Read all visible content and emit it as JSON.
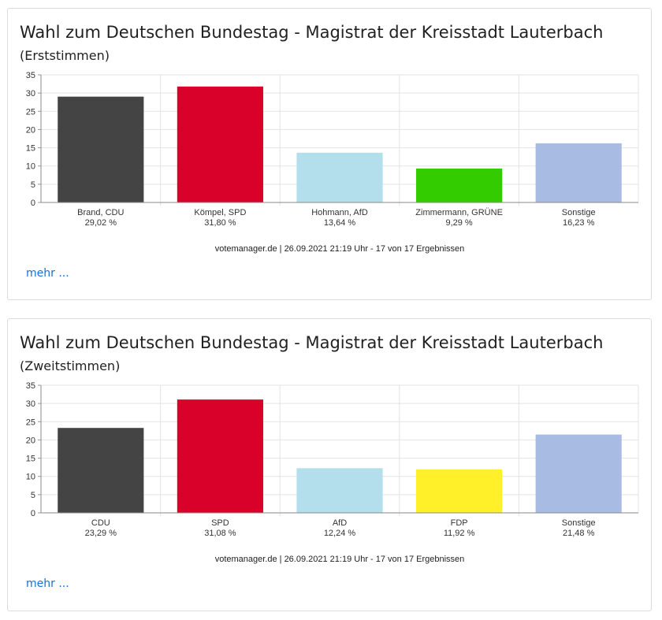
{
  "cards": [
    {
      "title": "Wahl zum Deutschen Bundestag - Magistrat der Kreisstadt Lauterbach",
      "subtitle": "(Erststimmen)",
      "source": "votemanager.de | 26.09.2021 21:19 Uhr - 17 von 17 Ergebnissen",
      "more_label": "mehr ...",
      "chart_data": {
        "type": "bar",
        "categories": [
          "Brand, CDU",
          "Kömpel, SPD",
          "Hohmann, AfD",
          "Zimmermann, GRÜNE",
          "Sonstige"
        ],
        "values": [
          29.02,
          31.8,
          13.64,
          9.29,
          16.23
        ],
        "value_labels": [
          "29,02 %",
          "31,80 %",
          "13,64 %",
          "9,29 %",
          "16,23 %"
        ],
        "colors": [
          "#444444",
          "#d9002a",
          "#b3dfec",
          "#33cc00",
          "#a8bce3"
        ],
        "yticks": [
          "0",
          "5",
          "10",
          "15",
          "20",
          "25",
          "30",
          "35"
        ],
        "ylim": [
          0,
          35
        ],
        "grid": true
      }
    },
    {
      "title": "Wahl zum Deutschen Bundestag - Magistrat der Kreisstadt Lauterbach",
      "subtitle": "(Zweitstimmen)",
      "source": "votemanager.de | 26.09.2021 21:19 Uhr - 17 von 17 Ergebnissen",
      "more_label": "mehr ...",
      "chart_data": {
        "type": "bar",
        "categories": [
          "CDU",
          "SPD",
          "AfD",
          "FDP",
          "Sonstige"
        ],
        "values": [
          23.29,
          31.08,
          12.24,
          11.92,
          21.48
        ],
        "value_labels": [
          "23,29 %",
          "31,08 %",
          "12,24 %",
          "11,92 %",
          "21,48 %"
        ],
        "colors": [
          "#444444",
          "#d9002a",
          "#b3dfec",
          "#fff02a",
          "#a8bce3"
        ],
        "yticks": [
          "0",
          "5",
          "10",
          "15",
          "20",
          "25",
          "30",
          "35"
        ],
        "ylim": [
          0,
          35
        ],
        "grid": true
      }
    }
  ]
}
